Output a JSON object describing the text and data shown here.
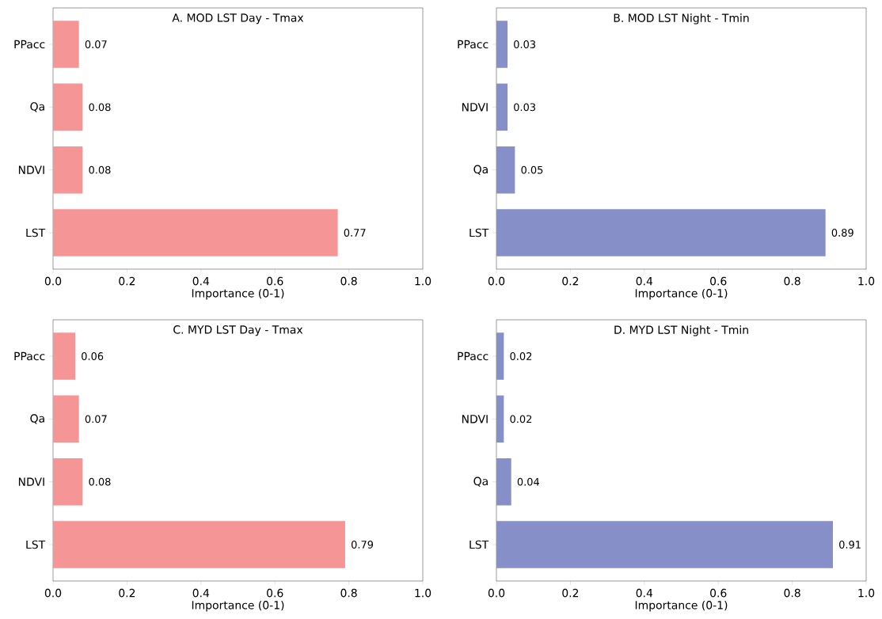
{
  "chart_data": [
    {
      "type": "bar",
      "orientation": "horizontal",
      "title": "A. MOD LST Day - Tmax",
      "xlabel": "Importance (0-1)",
      "categories": [
        "PPacc",
        "Qa",
        "NDVI",
        "LST"
      ],
      "values": [
        0.07,
        0.08,
        0.08,
        0.77
      ],
      "color": "#f59595",
      "data_labels": true,
      "xlim": [
        0,
        1
      ],
      "xticks": [
        {
          "value": 0,
          "label": "0.0"
        },
        {
          "value": 0.2,
          "label": "0.2"
        },
        {
          "value": 0.4,
          "label": "0.4"
        },
        {
          "value": 0.6,
          "label": "0.6"
        },
        {
          "value": 0.8,
          "label": "0.8"
        },
        {
          "value": 1,
          "label": "1.0"
        }
      ]
    },
    {
      "type": "bar",
      "orientation": "horizontal",
      "title": "B. MOD LST Night - Tmin",
      "xlabel": "Importance (0-1)",
      "categories": [
        "PPacc",
        "NDVI",
        "Qa",
        "LST"
      ],
      "values": [
        0.03,
        0.03,
        0.05,
        0.89
      ],
      "color": "#868fc7",
      "data_labels": true,
      "xlim": [
        0,
        1
      ],
      "xticks": [
        {
          "value": 0,
          "label": "0.0"
        },
        {
          "value": 0.2,
          "label": "0.2"
        },
        {
          "value": 0.4,
          "label": "0.4"
        },
        {
          "value": 0.6,
          "label": "0.6"
        },
        {
          "value": 0.8,
          "label": "0.8"
        },
        {
          "value": 1,
          "label": "1.0"
        }
      ]
    },
    {
      "type": "bar",
      "orientation": "horizontal",
      "title": "C. MYD LST Day - Tmax",
      "xlabel": "Importance (0-1)",
      "categories": [
        "PPacc",
        "Qa",
        "NDVI",
        "LST"
      ],
      "values": [
        0.06,
        0.07,
        0.08,
        0.79
      ],
      "color": "#f59595",
      "data_labels": true,
      "xlim": [
        0,
        1
      ],
      "xticks": [
        {
          "value": 0,
          "label": "0.0"
        },
        {
          "value": 0.2,
          "label": "0.2"
        },
        {
          "value": 0.4,
          "label": "0.4"
        },
        {
          "value": 0.6,
          "label": "0.6"
        },
        {
          "value": 0.8,
          "label": "0.8"
        },
        {
          "value": 1,
          "label": "1.0"
        }
      ]
    },
    {
      "type": "bar",
      "orientation": "horizontal",
      "title": "D. MYD LST Night - Tmin",
      "xlabel": "Importance (0-1)",
      "categories": [
        "PPacc",
        "NDVI",
        "Qa",
        "LST"
      ],
      "values": [
        0.02,
        0.02,
        0.04,
        0.91
      ],
      "color": "#868fc7",
      "data_labels": true,
      "xlim": [
        0,
        1
      ],
      "xticks": [
        {
          "value": 0,
          "label": "0.0"
        },
        {
          "value": 0.2,
          "label": "0.2"
        },
        {
          "value": 0.4,
          "label": "0.4"
        },
        {
          "value": 0.6,
          "label": "0.6"
        },
        {
          "value": 0.8,
          "label": "0.8"
        },
        {
          "value": 1,
          "label": "1.0"
        }
      ]
    }
  ]
}
